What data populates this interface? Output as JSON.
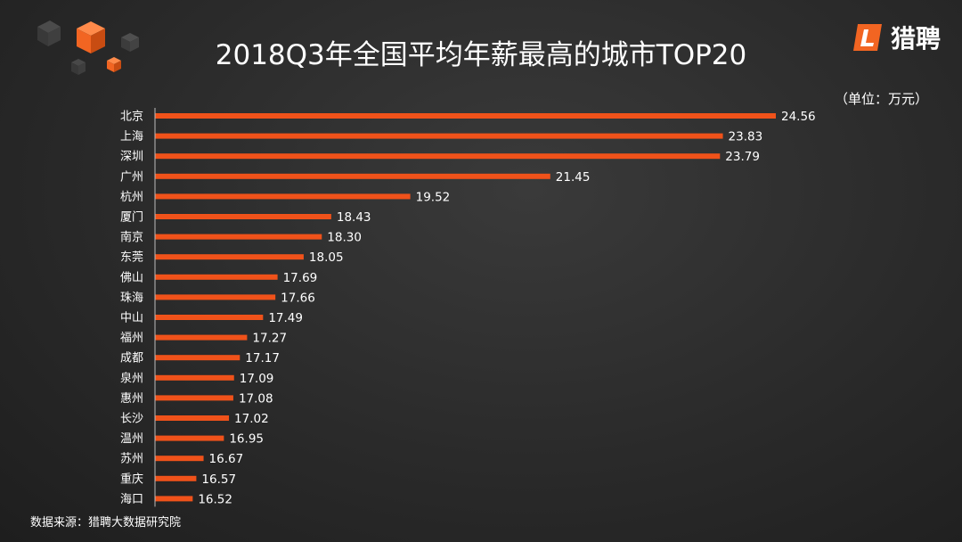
{
  "header": {
    "title": "2018Q3年全国平均年薪最高的城市TOP20",
    "logo_text": "猎聘",
    "unit": "（单位：万元）"
  },
  "footer": {
    "source": "数据来源：猎聘大数据研究院"
  },
  "colors": {
    "bar": "#f0521a",
    "accent": "#f26522"
  },
  "icons": {
    "logo": "liepin-logo-icon",
    "decor": "cube-cluster-decoration"
  },
  "chart_data": {
    "type": "bar",
    "orientation": "horizontal",
    "title": "2018Q3年全国平均年薪最高的城市TOP20",
    "unit": "万元",
    "categories": [
      "北京",
      "上海",
      "深圳",
      "广州",
      "杭州",
      "厦门",
      "南京",
      "东莞",
      "佛山",
      "珠海",
      "中山",
      "福州",
      "成都",
      "泉州",
      "惠州",
      "长沙",
      "温州",
      "苏州",
      "重庆",
      "海口"
    ],
    "values": [
      24.56,
      23.83,
      23.79,
      21.45,
      19.52,
      18.43,
      18.3,
      18.05,
      17.69,
      17.66,
      17.49,
      17.27,
      17.17,
      17.09,
      17.08,
      17.02,
      16.95,
      16.67,
      16.57,
      16.52
    ],
    "value_labels": [
      "24.56",
      "23.83",
      "23.79",
      "21.45",
      "19.52",
      "18.43",
      "18.30",
      "18.05",
      "17.69",
      "17.66",
      "17.49",
      "17.27",
      "17.17",
      "17.09",
      "17.08",
      "17.02",
      "16.95",
      "16.67",
      "16.57",
      "16.52"
    ],
    "xlim": [
      16.0,
      24.56
    ],
    "grid": false,
    "legend": "none"
  }
}
